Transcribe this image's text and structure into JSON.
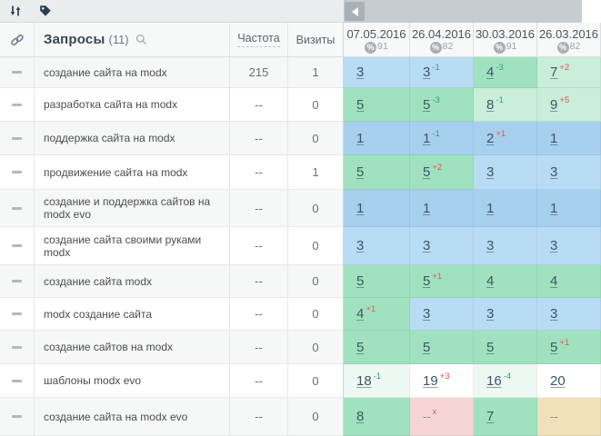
{
  "palette": {
    "blue_top3": "#a6d0ed",
    "blue_mid": "#b8dcf3",
    "green": "#a0e2bf",
    "green_pale": "#c9eeda",
    "green_tint": "#eef8f2",
    "white": "#ffffff",
    "pink": "#f6d5d6",
    "tan": "#f1e1bb",
    "delta_improve": "#2aa185",
    "delta_decline": "#e25555"
  },
  "icons": {
    "toolbar_sort": "sort-arrows-icon",
    "toolbar_tag": "tag-icon",
    "scroll_left": "arrow-left-icon",
    "header_link": "link-icon",
    "header_search": "magnifier-icon",
    "percent_badge": "percent-circle-icon"
  },
  "header": {
    "queries_label": "Запросы",
    "queries_count": "(11)",
    "frequency_label": "Частота",
    "visits_label": "Визиты"
  },
  "date_columns": [
    {
      "date": "07.05.2016",
      "percent": "91"
    },
    {
      "date": "26.04.2016",
      "percent": "82"
    },
    {
      "date": "30.03.2016",
      "percent": "91"
    },
    {
      "date": "26.03.2016",
      "percent": "82"
    }
  ],
  "rows": [
    {
      "query": "создание сайта на modx",
      "frequency": "215",
      "visits": "1",
      "cells": [
        {
          "value": "3",
          "delta": "",
          "trend": "",
          "bg": "blue_mid"
        },
        {
          "value": "3",
          "delta": "-1",
          "trend": "improve",
          "bg": "blue_mid"
        },
        {
          "value": "4",
          "delta": "-3",
          "trend": "improve",
          "bg": "green"
        },
        {
          "value": "7",
          "delta": "+2",
          "trend": "decline",
          "bg": "green_pale"
        }
      ]
    },
    {
      "query": "разработка сайта на modx",
      "frequency": "--",
      "visits": "0",
      "cells": [
        {
          "value": "5",
          "delta": "",
          "trend": "",
          "bg": "green"
        },
        {
          "value": "5",
          "delta": "-3",
          "trend": "improve",
          "bg": "green"
        },
        {
          "value": "8",
          "delta": "-1",
          "trend": "improve",
          "bg": "green_pale"
        },
        {
          "value": "9",
          "delta": "+5",
          "trend": "decline",
          "bg": "green_pale"
        }
      ]
    },
    {
      "query": "поддержка сайта на modx",
      "frequency": "--",
      "visits": "0",
      "cells": [
        {
          "value": "1",
          "delta": "",
          "trend": "",
          "bg": "blue_top3"
        },
        {
          "value": "1",
          "delta": "-1",
          "trend": "improve",
          "bg": "blue_top3"
        },
        {
          "value": "2",
          "delta": "+1",
          "trend": "decline",
          "bg": "blue_top3"
        },
        {
          "value": "1",
          "delta": "",
          "trend": "",
          "bg": "blue_top3"
        }
      ]
    },
    {
      "query": "продвижение сайта на modx",
      "frequency": "--",
      "visits": "1",
      "cells": [
        {
          "value": "5",
          "delta": "",
          "trend": "",
          "bg": "green"
        },
        {
          "value": "5",
          "delta": "+2",
          "trend": "decline",
          "bg": "green"
        },
        {
          "value": "3",
          "delta": "",
          "trend": "",
          "bg": "blue_mid"
        },
        {
          "value": "3",
          "delta": "",
          "trend": "",
          "bg": "blue_mid"
        }
      ]
    },
    {
      "query": "создание и поддержка сайтов на modx evo",
      "frequency": "--",
      "visits": "0",
      "cells": [
        {
          "value": "1",
          "delta": "",
          "trend": "",
          "bg": "blue_top3"
        },
        {
          "value": "1",
          "delta": "",
          "trend": "",
          "bg": "blue_top3"
        },
        {
          "value": "1",
          "delta": "",
          "trend": "",
          "bg": "blue_top3"
        },
        {
          "value": "1",
          "delta": "",
          "trend": "",
          "bg": "blue_top3"
        }
      ]
    },
    {
      "query": "создание сайта своими руками modx",
      "frequency": "--",
      "visits": "0",
      "cells": [
        {
          "value": "3",
          "delta": "",
          "trend": "",
          "bg": "blue_mid"
        },
        {
          "value": "3",
          "delta": "",
          "trend": "",
          "bg": "blue_mid"
        },
        {
          "value": "3",
          "delta": "",
          "trend": "",
          "bg": "blue_mid"
        },
        {
          "value": "3",
          "delta": "",
          "trend": "",
          "bg": "blue_mid"
        }
      ]
    },
    {
      "query": "создание сайта modx",
      "frequency": "--",
      "visits": "0",
      "cells": [
        {
          "value": "5",
          "delta": "",
          "trend": "",
          "bg": "green"
        },
        {
          "value": "5",
          "delta": "+1",
          "trend": "decline",
          "bg": "green"
        },
        {
          "value": "4",
          "delta": "",
          "trend": "",
          "bg": "green"
        },
        {
          "value": "4",
          "delta": "",
          "trend": "",
          "bg": "green"
        }
      ]
    },
    {
      "query": "modx создание сайта",
      "frequency": "--",
      "visits": "0",
      "cells": [
        {
          "value": "4",
          "delta": "+1",
          "trend": "decline",
          "bg": "green"
        },
        {
          "value": "3",
          "delta": "",
          "trend": "",
          "bg": "blue_mid"
        },
        {
          "value": "3",
          "delta": "",
          "trend": "",
          "bg": "blue_mid"
        },
        {
          "value": "3",
          "delta": "",
          "trend": "",
          "bg": "blue_mid"
        }
      ]
    },
    {
      "query": "создание сайтов на modx",
      "frequency": "--",
      "visits": "0",
      "cells": [
        {
          "value": "5",
          "delta": "",
          "trend": "",
          "bg": "green"
        },
        {
          "value": "5",
          "delta": "",
          "trend": "",
          "bg": "green"
        },
        {
          "value": "5",
          "delta": "",
          "trend": "",
          "bg": "green"
        },
        {
          "value": "5",
          "delta": "+1",
          "trend": "decline",
          "bg": "green"
        }
      ]
    },
    {
      "query": "шаблоны modx evo",
      "frequency": "--",
      "visits": "0",
      "cells": [
        {
          "value": "18",
          "delta": "-1",
          "trend": "improve",
          "bg": "green_tint"
        },
        {
          "value": "19",
          "delta": "+3",
          "trend": "decline",
          "bg": "white"
        },
        {
          "value": "16",
          "delta": "-4",
          "trend": "improve",
          "bg": "green_tint"
        },
        {
          "value": "20",
          "delta": "",
          "trend": "",
          "bg": "white"
        }
      ]
    },
    {
      "query": "создание сайта на modx evo",
      "frequency": "--",
      "visits": "0",
      "cells": [
        {
          "value": "8",
          "delta": "",
          "trend": "",
          "bg": "green"
        },
        {
          "value": "--",
          "delta": "x",
          "trend": "dropped",
          "bg": "pink"
        },
        {
          "value": "7",
          "delta": "",
          "trend": "",
          "bg": "green"
        },
        {
          "value": "--",
          "delta": "",
          "trend": "",
          "bg": "tan"
        }
      ]
    }
  ]
}
